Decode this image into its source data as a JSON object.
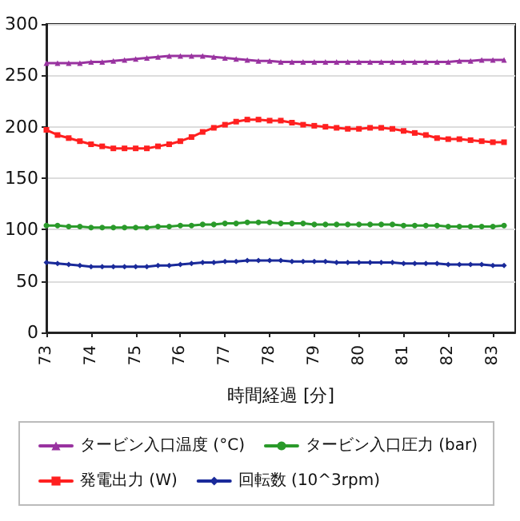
{
  "chart_data": {
    "type": "line",
    "xlabel": "時間経過 [分]",
    "x": [
      73,
      73.25,
      73.5,
      73.75,
      74,
      74.25,
      74.5,
      74.75,
      75,
      75.25,
      75.5,
      75.75,
      76,
      76.25,
      76.5,
      76.75,
      77,
      77.25,
      77.5,
      77.75,
      78,
      78.25,
      78.5,
      78.75,
      79,
      79.25,
      79.5,
      79.75,
      80,
      80.25,
      80.5,
      80.75,
      81,
      81.25,
      81.5,
      81.75,
      82,
      82.25,
      82.5,
      82.75,
      83,
      83.25
    ],
    "series": [
      {
        "name": "タービン入口温度 (°C)",
        "color": "#9933a0",
        "marker": "triangle",
        "values": [
          262,
          262,
          262,
          262,
          263,
          263,
          264,
          265,
          266,
          267,
          268,
          269,
          269,
          269,
          269,
          268,
          267,
          266,
          265,
          264,
          264,
          263,
          263,
          263,
          263,
          263,
          263,
          263,
          263,
          263,
          263,
          263,
          263,
          263,
          263,
          263,
          263,
          264,
          264,
          265,
          265,
          265
        ]
      },
      {
        "name": "タービン入口圧力 (bar)",
        "color": "#2a9a2a",
        "marker": "circle",
        "values": [
          104,
          104,
          103,
          103,
          102,
          102,
          102,
          102,
          102,
          102,
          103,
          103,
          104,
          104,
          105,
          105,
          106,
          106,
          107,
          107,
          107,
          106,
          106,
          106,
          105,
          105,
          105,
          105,
          105,
          105,
          105,
          105,
          104,
          104,
          104,
          104,
          103,
          103,
          103,
          103,
          103,
          104
        ]
      },
      {
        "name": "発電出力 (W)",
        "color": "#ff2020",
        "marker": "square",
        "values": [
          197,
          192,
          189,
          186,
          183,
          181,
          179,
          179,
          179,
          179,
          181,
          183,
          186,
          190,
          195,
          199,
          202,
          205,
          207,
          207,
          206,
          206,
          204,
          202,
          201,
          200,
          199,
          198,
          198,
          199,
          199,
          198,
          196,
          194,
          192,
          189,
          188,
          188,
          187,
          186,
          185,
          185
        ]
      },
      {
        "name": "回転数 (10^3rpm)",
        "color": "#1a2a9a",
        "marker": "diamond",
        "values": [
          68,
          67,
          66,
          65,
          64,
          64,
          64,
          64,
          64,
          64,
          65,
          65,
          66,
          67,
          68,
          68,
          69,
          69,
          70,
          70,
          70,
          70,
          69,
          69,
          69,
          69,
          68,
          68,
          68,
          68,
          68,
          68,
          67,
          67,
          67,
          67,
          66,
          66,
          66,
          66,
          65,
          65
        ]
      }
    ],
    "xlim": [
      73,
      83.5
    ],
    "xticks": [
      73,
      74,
      75,
      76,
      77,
      78,
      79,
      80,
      81,
      82,
      83
    ],
    "ylim": [
      0,
      300
    ],
    "yticks": [
      0,
      50,
      100,
      150,
      200,
      250,
      300
    ],
    "grid": "y",
    "legend": "bottom",
    "line_style": "solid"
  }
}
